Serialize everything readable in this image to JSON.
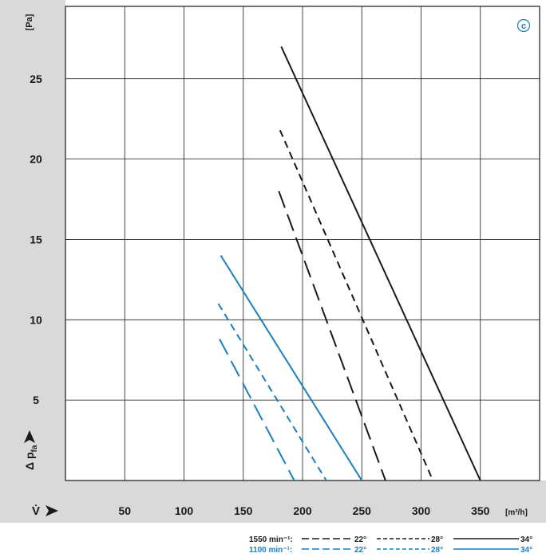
{
  "chart_data": {
    "type": "line",
    "badge": "c",
    "y_unit": "[Pa]",
    "y_label": "Δ p",
    "y_label_sub": "fa",
    "x_label": "V̇",
    "x_unit": "[m³/h]",
    "x_ticks": [
      50,
      100,
      150,
      200,
      250,
      300,
      350
    ],
    "y_ticks": [
      5,
      10,
      15,
      20,
      25
    ],
    "xlim": [
      0,
      400
    ],
    "ylim": [
      0,
      29.5
    ],
    "grid": true,
    "colors": {
      "black": "#1a1a1a",
      "blue": "#1a7fc1",
      "grey_band": "#d9d9d9"
    },
    "series": [
      {
        "speed": "1550 min-1",
        "angle": "22°",
        "style": "longdash",
        "color": "black",
        "points": [
          [
            180,
            18
          ],
          [
            270,
            0
          ]
        ]
      },
      {
        "speed": "1550 min-1",
        "angle": "28°",
        "style": "shortdash",
        "color": "black",
        "points": [
          [
            181,
            21.8
          ],
          [
            310,
            0
          ]
        ]
      },
      {
        "speed": "1550 min-1",
        "angle": "34°",
        "style": "solid",
        "color": "black",
        "points": [
          [
            182,
            27
          ],
          [
            350,
            0
          ]
        ]
      },
      {
        "speed": "1100 min-1",
        "angle": "22°",
        "style": "longdash",
        "color": "blue",
        "points": [
          [
            130,
            8.8
          ],
          [
            193,
            0
          ]
        ]
      },
      {
        "speed": "1100 min-1",
        "angle": "28°",
        "style": "shortdash",
        "color": "blue",
        "points": [
          [
            129,
            11
          ],
          [
            220,
            0
          ]
        ]
      },
      {
        "speed": "1100 min-1",
        "angle": "34°",
        "style": "solid",
        "color": "blue",
        "points": [
          [
            131,
            14
          ],
          [
            250,
            0
          ]
        ]
      }
    ],
    "legend": {
      "rows": [
        {
          "speed_label": "1550 min⁻¹:",
          "color": "black",
          "entries": [
            "22°",
            "28°",
            "34°"
          ]
        },
        {
          "speed_label": "1100 min⁻¹:",
          "color": "blue",
          "entries": [
            "22°",
            "28°",
            "34°"
          ]
        }
      ]
    }
  }
}
